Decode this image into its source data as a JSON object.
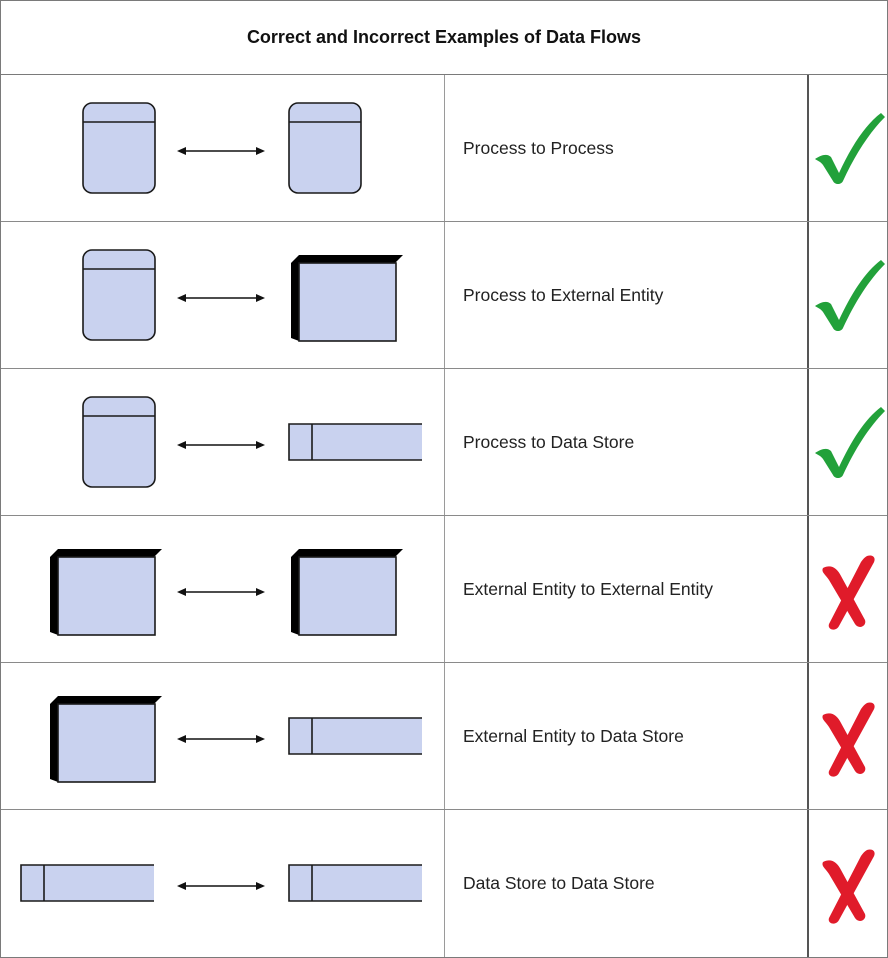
{
  "title": "Correct and Incorrect Examples of Data Flows",
  "colors": {
    "shape_fill": "#c9d2ef",
    "shape_stroke": "#1a1a1a",
    "shadow": "#000000",
    "check_green": "#22a13a",
    "cross_red": "#e01b2a"
  },
  "rows": [
    {
      "label": "Process to Process",
      "left": "process",
      "right": "process",
      "result": "correct",
      "mark_icon": "checkmark-icon"
    },
    {
      "label": "Process to External Entity",
      "left": "process",
      "right": "external-entity",
      "result": "correct",
      "mark_icon": "checkmark-icon"
    },
    {
      "label": "Process to Data Store",
      "left": "process",
      "right": "data-store",
      "result": "correct",
      "mark_icon": "checkmark-icon"
    },
    {
      "label": "External Entity to External Entity",
      "left": "external-entity",
      "right": "external-entity",
      "result": "incorrect",
      "mark_icon": "cross-icon"
    },
    {
      "label": "External Entity to Data Store",
      "left": "external-entity",
      "right": "data-store",
      "result": "incorrect",
      "mark_icon": "cross-icon"
    },
    {
      "label": "Data Store to Data Store",
      "left": "data-store",
      "right": "data-store",
      "result": "incorrect",
      "mark_icon": "cross-icon"
    }
  ]
}
